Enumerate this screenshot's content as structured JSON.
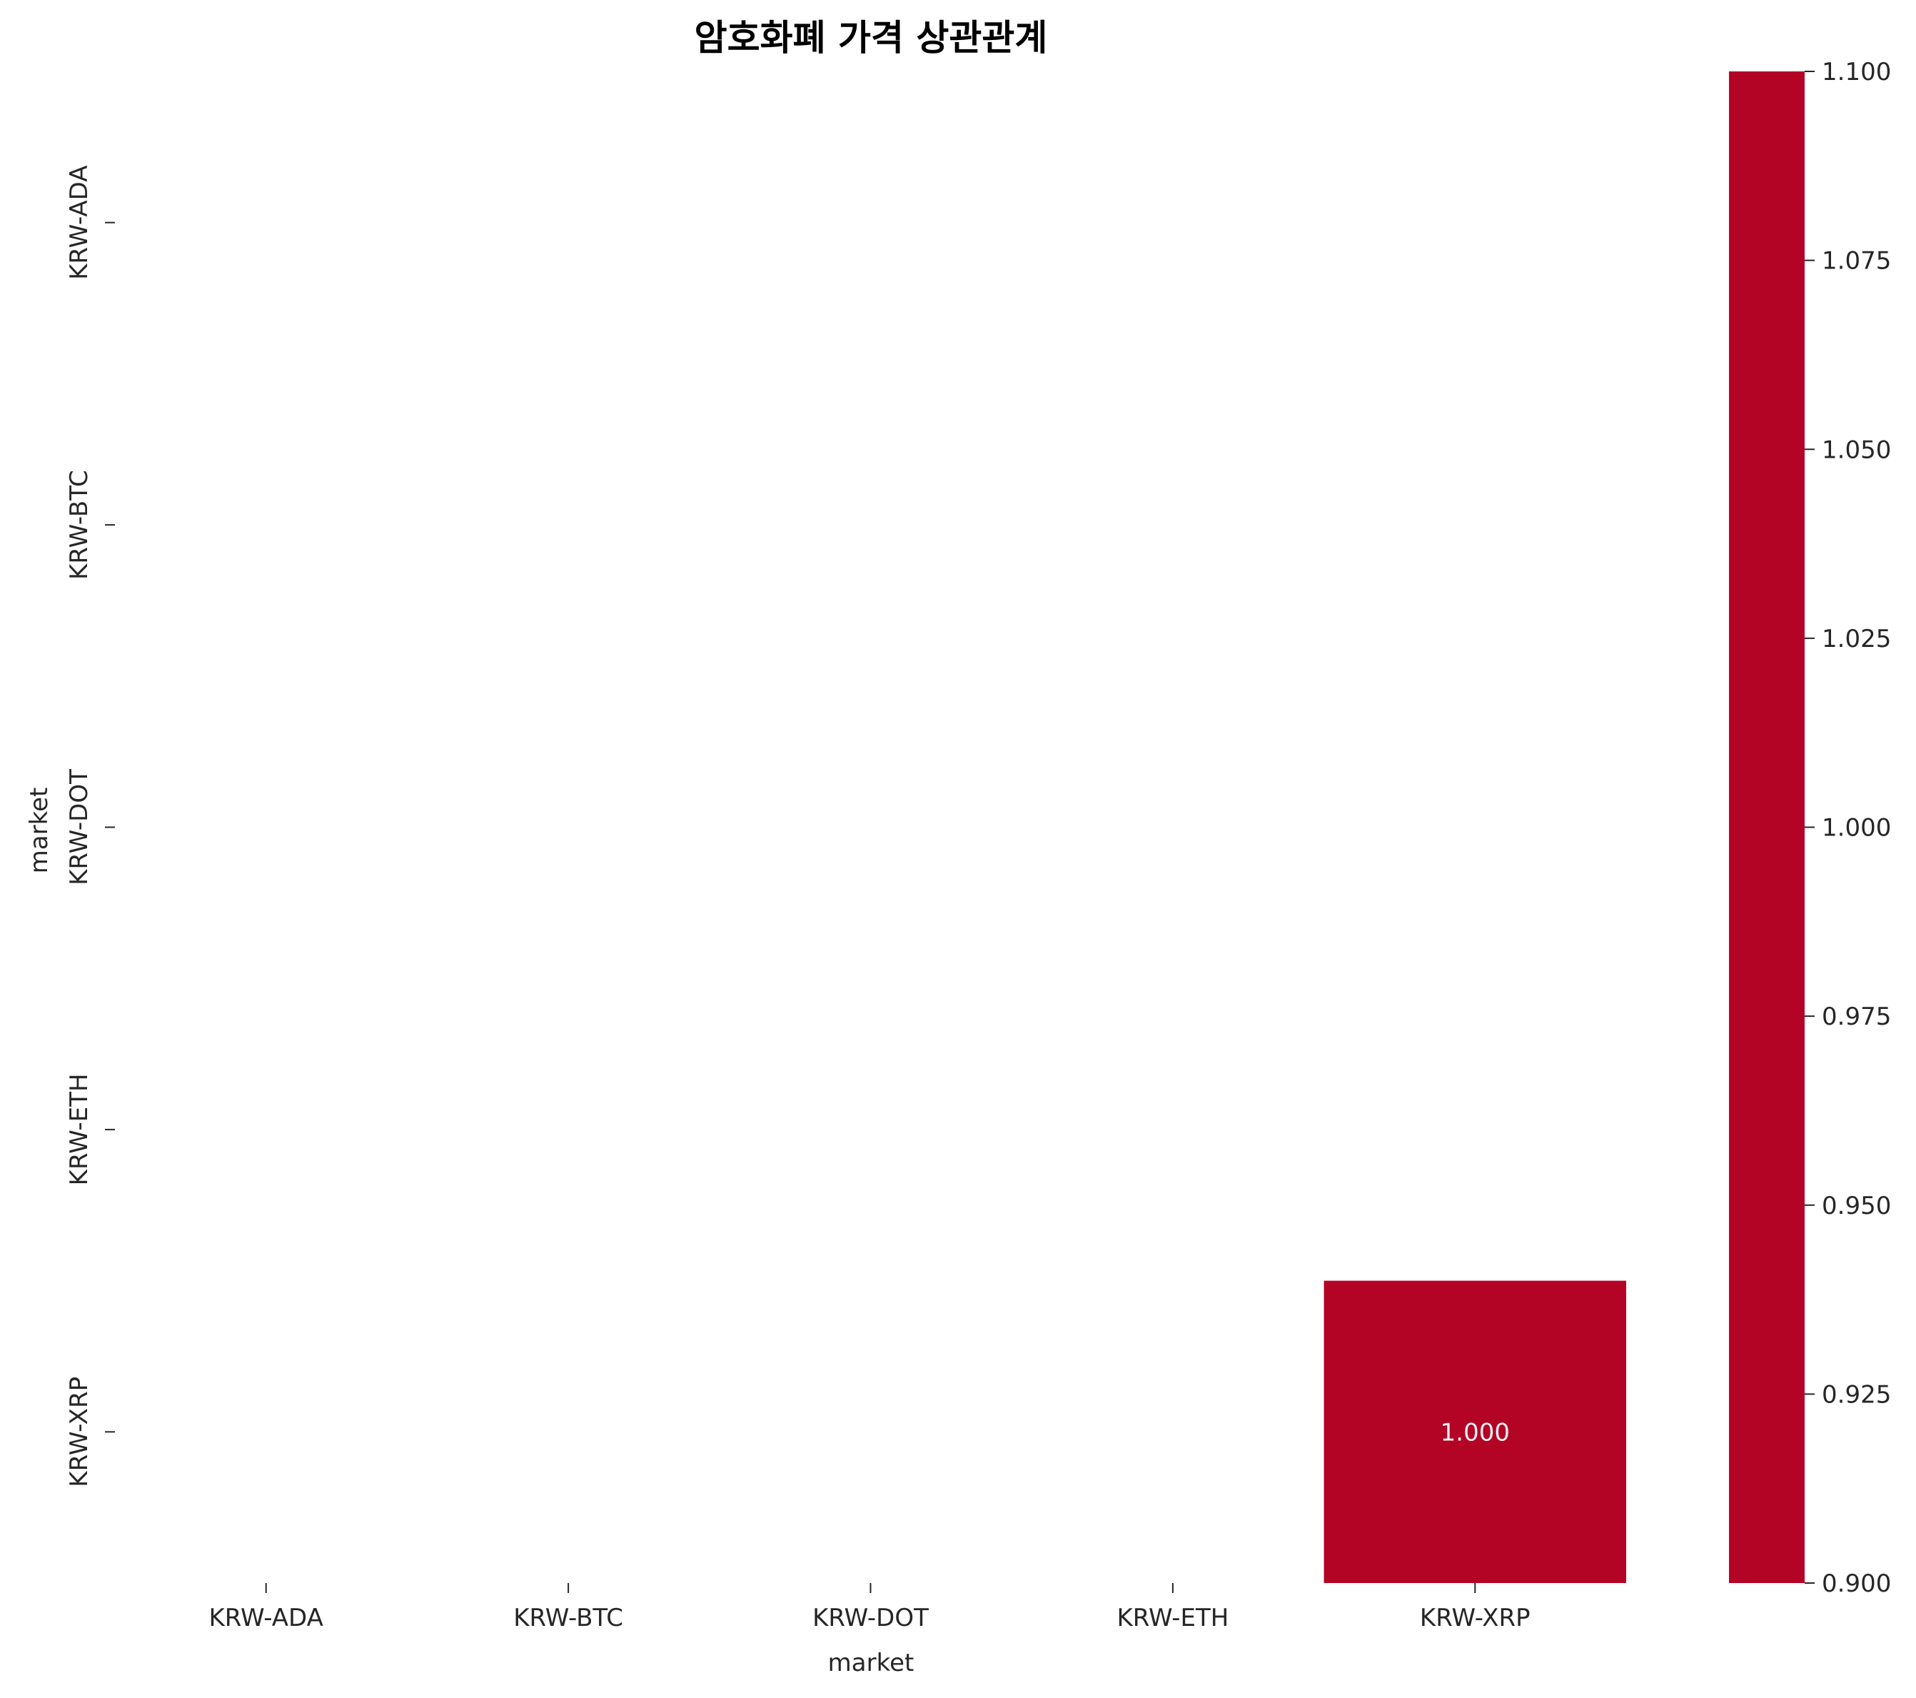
{
  "chart_data": {
    "type": "heatmap",
    "title": "암호화폐 가격 상관관계",
    "xlabel": "market",
    "ylabel": "market",
    "x_categories": [
      "KRW-ADA",
      "KRW-BTC",
      "KRW-DOT",
      "KRW-ETH",
      "KRW-XRP"
    ],
    "y_categories": [
      "KRW-ADA",
      "KRW-BTC",
      "KRW-DOT",
      "KRW-ETH",
      "KRW-XRP"
    ],
    "cells": [
      {
        "row": "KRW-XRP",
        "col": "KRW-XRP",
        "value": 1.0,
        "label": "1.000"
      }
    ],
    "colorbar": {
      "vmin": 0.9,
      "vmax": 1.1,
      "ticks": [
        "0.900",
        "0.925",
        "0.950",
        "0.975",
        "1.000",
        "1.025",
        "1.050",
        "1.075",
        "1.100"
      ],
      "color": "#b40426"
    },
    "cell_text_color": "#f2f2f2"
  }
}
